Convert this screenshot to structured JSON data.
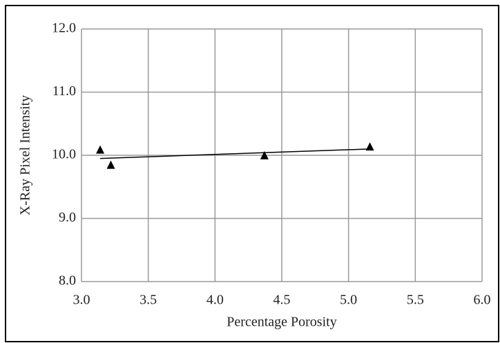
{
  "chart_data": {
    "type": "scatter",
    "xlabel": "Percentage Porosity",
    "ylabel": "X-Ray Pixel Intensity",
    "x": [
      3.14,
      3.22,
      4.37,
      5.16
    ],
    "values": [
      10.08,
      9.84,
      9.99,
      10.13
    ],
    "color": "#000000",
    "marker": "triangle",
    "trendline": {
      "x": [
        3.14,
        5.16
      ],
      "values": [
        9.95,
        10.1
      ],
      "color": "#000000"
    },
    "xlim": [
      3,
      6
    ],
    "ylim": [
      8,
      12
    ],
    "xticks": [
      {
        "value": 3,
        "label": "3.0"
      },
      {
        "value": 3.5,
        "label": "3.5"
      },
      {
        "value": 4,
        "label": "4.0"
      },
      {
        "value": 4.5,
        "label": "4.5"
      },
      {
        "value": 5,
        "label": "5.0"
      },
      {
        "value": 5.5,
        "label": "5.5"
      },
      {
        "value": 6,
        "label": "6.0"
      }
    ],
    "yticks": [
      {
        "value": 8,
        "label": "8.0"
      },
      {
        "value": 9,
        "label": "9.0"
      },
      {
        "value": 10,
        "label": "10.0"
      },
      {
        "value": 11,
        "label": "11.0"
      },
      {
        "value": 12,
        "label": "12.0"
      }
    ],
    "grid": true
  }
}
